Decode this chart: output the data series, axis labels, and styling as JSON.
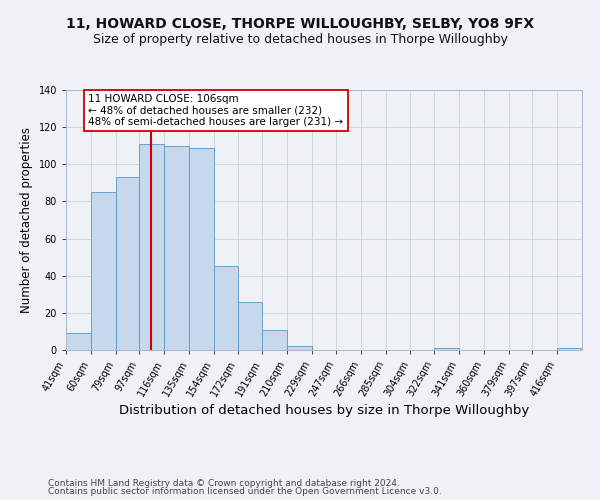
{
  "title": "11, HOWARD CLOSE, THORPE WILLOUGHBY, SELBY, YO8 9FX",
  "subtitle": "Size of property relative to detached houses in Thorpe Willoughby",
  "xlabel": "Distribution of detached houses by size in Thorpe Willoughby",
  "ylabel": "Number of detached properties",
  "bin_edges": [
    41,
    60,
    79,
    97,
    116,
    135,
    154,
    172,
    191,
    210,
    229,
    247,
    266,
    285,
    304,
    322,
    341,
    360,
    379,
    397,
    416
  ],
  "bin_labels": [
    "41sqm",
    "60sqm",
    "79sqm",
    "97sqm",
    "116sqm",
    "135sqm",
    "154sqm",
    "172sqm",
    "191sqm",
    "210sqm",
    "229sqm",
    "247sqm",
    "266sqm",
    "285sqm",
    "304sqm",
    "322sqm",
    "341sqm",
    "360sqm",
    "379sqm",
    "397sqm",
    "416sqm"
  ],
  "counts": [
    9,
    85,
    93,
    111,
    110,
    109,
    45,
    26,
    11,
    2,
    0,
    0,
    0,
    0,
    0,
    1,
    0,
    0,
    0,
    0,
    1
  ],
  "bar_color": "#c8d8ec",
  "bar_edge_color": "#5599cc",
  "property_size": 106,
  "vline_x": 106,
  "vline_color": "#cc0000",
  "annotation_text": "11 HOWARD CLOSE: 106sqm\n← 48% of detached houses are smaller (232)\n48% of semi-detached houses are larger (231) →",
  "annotation_box_color": "#ffffff",
  "annotation_box_edge_color": "#cc0000",
  "ylim": [
    0,
    140
  ],
  "yticks": [
    0,
    20,
    40,
    60,
    80,
    100,
    120,
    140
  ],
  "grid_color": "#c8d4dc",
  "background_color": "#eef2f7",
  "footer_line1": "Contains HM Land Registry data © Crown copyright and database right 2024.",
  "footer_line2": "Contains public sector information licensed under the Open Government Licence v3.0.",
  "title_fontsize": 10,
  "subtitle_fontsize": 9,
  "xlabel_fontsize": 9.5,
  "ylabel_fontsize": 8.5,
  "tick_fontsize": 7,
  "footer_fontsize": 6.5,
  "annotation_fontsize": 7.5
}
